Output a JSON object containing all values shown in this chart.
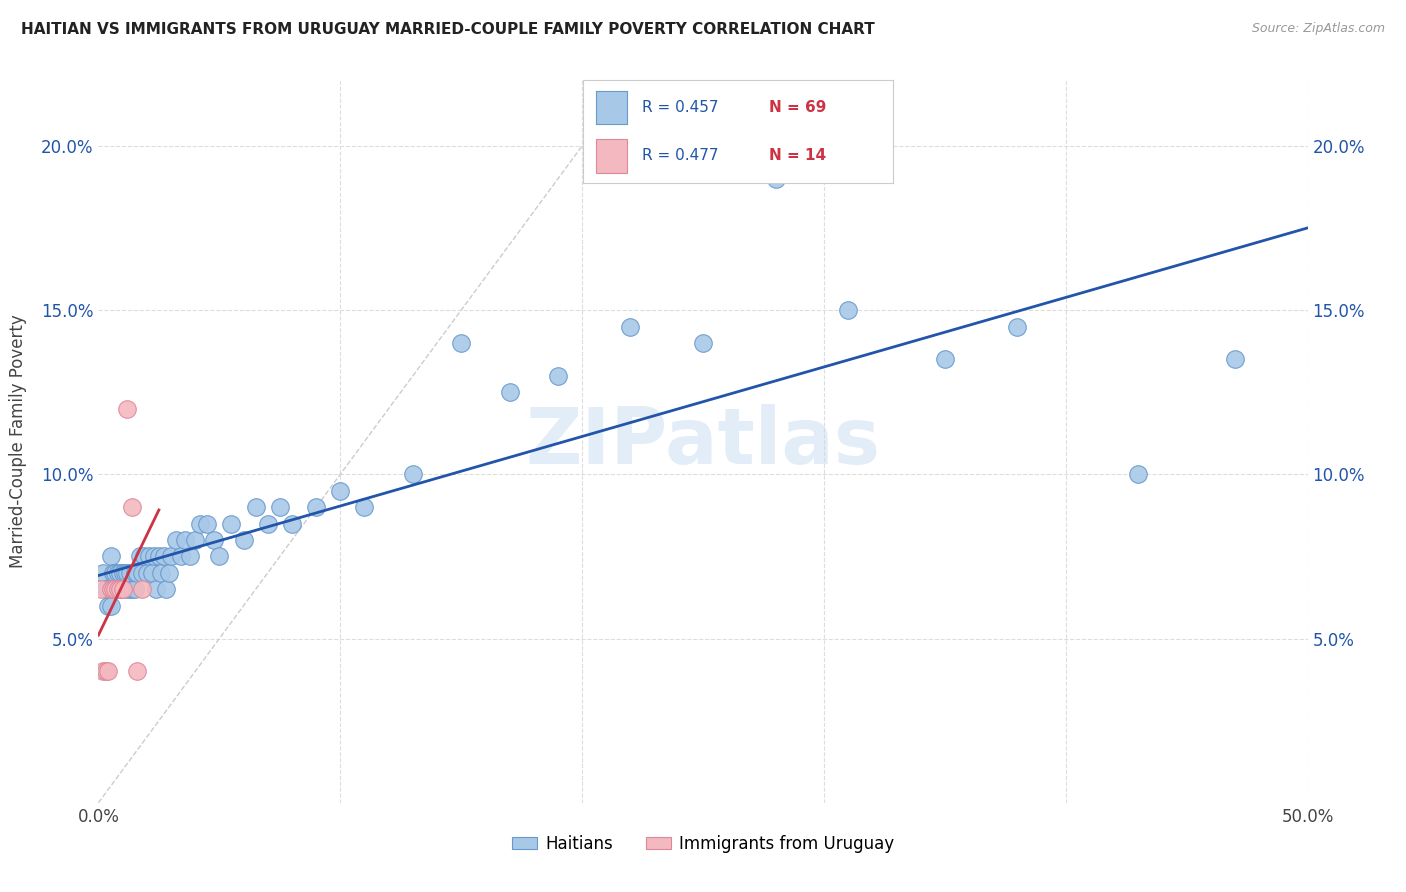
{
  "title": "HAITIAN VS IMMIGRANTS FROM URUGUAY MARRIED-COUPLE FAMILY POVERTY CORRELATION CHART",
  "source": "Source: ZipAtlas.com",
  "ylabel": "Married-Couple Family Poverty",
  "xlim": [
    0.0,
    0.5
  ],
  "ylim": [
    0.0,
    0.22
  ],
  "background_color": "#ffffff",
  "watermark": "ZIPatlas",
  "legend_r1": "R = 0.457",
  "legend_n1": "N = 69",
  "legend_r2": "R = 0.477",
  "legend_n2": "N = 14",
  "color_blue": "#a8c8e8",
  "color_blue_edge": "#6699cc",
  "color_pink": "#f4b8c0",
  "color_pink_edge": "#dd8899",
  "color_line_blue": "#2255aa",
  "color_line_pink": "#cc3344",
  "color_diag": "#cccccc",
  "haiti_x": [
    0.002,
    0.003,
    0.004,
    0.005,
    0.005,
    0.006,
    0.006,
    0.007,
    0.007,
    0.008,
    0.008,
    0.009,
    0.009,
    0.01,
    0.01,
    0.01,
    0.011,
    0.012,
    0.012,
    0.013,
    0.013,
    0.014,
    0.015,
    0.015,
    0.016,
    0.017,
    0.018,
    0.019,
    0.02,
    0.021,
    0.022,
    0.023,
    0.024,
    0.025,
    0.026,
    0.027,
    0.028,
    0.029,
    0.03,
    0.032,
    0.034,
    0.036,
    0.038,
    0.04,
    0.042,
    0.045,
    0.048,
    0.05,
    0.055,
    0.06,
    0.065,
    0.07,
    0.075,
    0.08,
    0.09,
    0.1,
    0.11,
    0.13,
    0.15,
    0.17,
    0.19,
    0.22,
    0.25,
    0.28,
    0.31,
    0.35,
    0.38,
    0.43,
    0.47
  ],
  "haiti_y": [
    0.07,
    0.065,
    0.06,
    0.06,
    0.075,
    0.065,
    0.07,
    0.065,
    0.07,
    0.07,
    0.065,
    0.07,
    0.065,
    0.065,
    0.07,
    0.065,
    0.07,
    0.065,
    0.07,
    0.065,
    0.07,
    0.065,
    0.07,
    0.065,
    0.07,
    0.075,
    0.07,
    0.075,
    0.07,
    0.075,
    0.07,
    0.075,
    0.065,
    0.075,
    0.07,
    0.075,
    0.065,
    0.07,
    0.075,
    0.08,
    0.075,
    0.08,
    0.075,
    0.08,
    0.085,
    0.085,
    0.08,
    0.075,
    0.085,
    0.08,
    0.09,
    0.085,
    0.09,
    0.085,
    0.09,
    0.095,
    0.09,
    0.1,
    0.14,
    0.125,
    0.13,
    0.145,
    0.14,
    0.19,
    0.15,
    0.135,
    0.145,
    0.1,
    0.135
  ],
  "uruguay_x": [
    0.001,
    0.002,
    0.003,
    0.004,
    0.005,
    0.006,
    0.007,
    0.008,
    0.009,
    0.01,
    0.012,
    0.014,
    0.016,
    0.018
  ],
  "uruguay_y": [
    0.065,
    0.04,
    0.04,
    0.04,
    0.065,
    0.065,
    0.065,
    0.065,
    0.065,
    0.065,
    0.12,
    0.09,
    0.04,
    0.065
  ]
}
